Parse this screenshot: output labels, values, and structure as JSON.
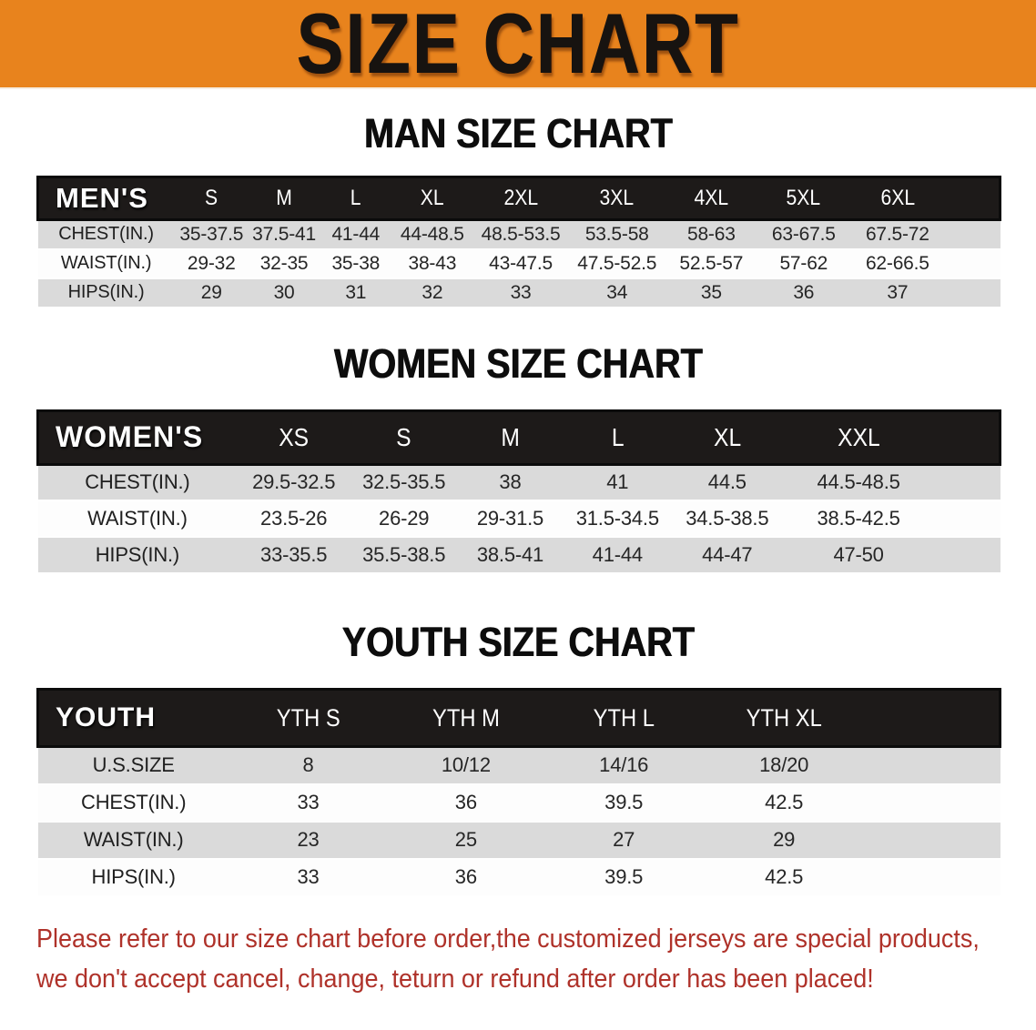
{
  "banner": {
    "title": "SIZE CHART",
    "bg_color": "#E8831D"
  },
  "sections": [
    {
      "heading": "MAN SIZE CHART",
      "table": {
        "group_label": "MEN'S",
        "sizes": [
          "S",
          "M",
          "L",
          "XL",
          "2XL",
          "3XL",
          "4XL",
          "5XL",
          "6XL"
        ],
        "rows": [
          {
            "label": "CHEST(IN.)",
            "values": [
              "35-37.5",
              "37.5-41",
              "41-44",
              "44-48.5",
              "48.5-53.5",
              "53.5-58",
              "58-63",
              "63-67.5",
              "67.5-72"
            ]
          },
          {
            "label": "WAIST(IN.)",
            "values": [
              "29-32",
              "32-35",
              "35-38",
              "38-43",
              "43-47.5",
              "47.5-52.5",
              "52.5-57",
              "57-62",
              "62-66.5"
            ]
          },
          {
            "label": "HIPS(IN.)",
            "values": [
              "29",
              "30",
              "31",
              "32",
              "33",
              "34",
              "35",
              "36",
              "37"
            ]
          }
        ]
      }
    },
    {
      "heading": "WOMEN SIZE CHART",
      "table": {
        "group_label": "WOMEN'S",
        "sizes": [
          "XS",
          "S",
          "M",
          "L",
          "XL",
          "XXL"
        ],
        "rows": [
          {
            "label": "CHEST(IN.)",
            "values": [
              "29.5-32.5",
              "32.5-35.5",
              "38",
              "41",
              "44.5",
              "44.5-48.5"
            ]
          },
          {
            "label": "WAIST(IN.)",
            "values": [
              "23.5-26",
              "26-29",
              "29-31.5",
              "31.5-34.5",
              "34.5-38.5",
              "38.5-42.5"
            ]
          },
          {
            "label": "HIPS(IN.)",
            "values": [
              "33-35.5",
              "35.5-38.5",
              "38.5-41",
              "41-44",
              "44-47",
              "47-50"
            ]
          }
        ]
      }
    },
    {
      "heading": "YOUTH SIZE CHART",
      "table": {
        "group_label": "YOUTH",
        "sizes": [
          "YTH S",
          "YTH M",
          "YTH L",
          "YTH XL"
        ],
        "rows": [
          {
            "label": "U.S.SIZE",
            "values": [
              "8",
              "10/12",
              "14/16",
              "18/20"
            ]
          },
          {
            "label": "CHEST(IN.)",
            "values": [
              "33",
              "36",
              "39.5",
              "42.5"
            ]
          },
          {
            "label": "WAIST(IN.)",
            "values": [
              "23",
              "25",
              "27",
              "29"
            ]
          },
          {
            "label": "HIPS(IN.)",
            "values": [
              "33",
              "36",
              "39.5",
              "42.5"
            ]
          }
        ]
      }
    }
  ],
  "disclaimer": {
    "lines": [
      "Please refer to our size chart before order,the customized jerseys are special products,",
      "we don't accept cancel, change, teturn or refund after order has been placed!"
    ],
    "text_color": "#AF322A"
  }
}
